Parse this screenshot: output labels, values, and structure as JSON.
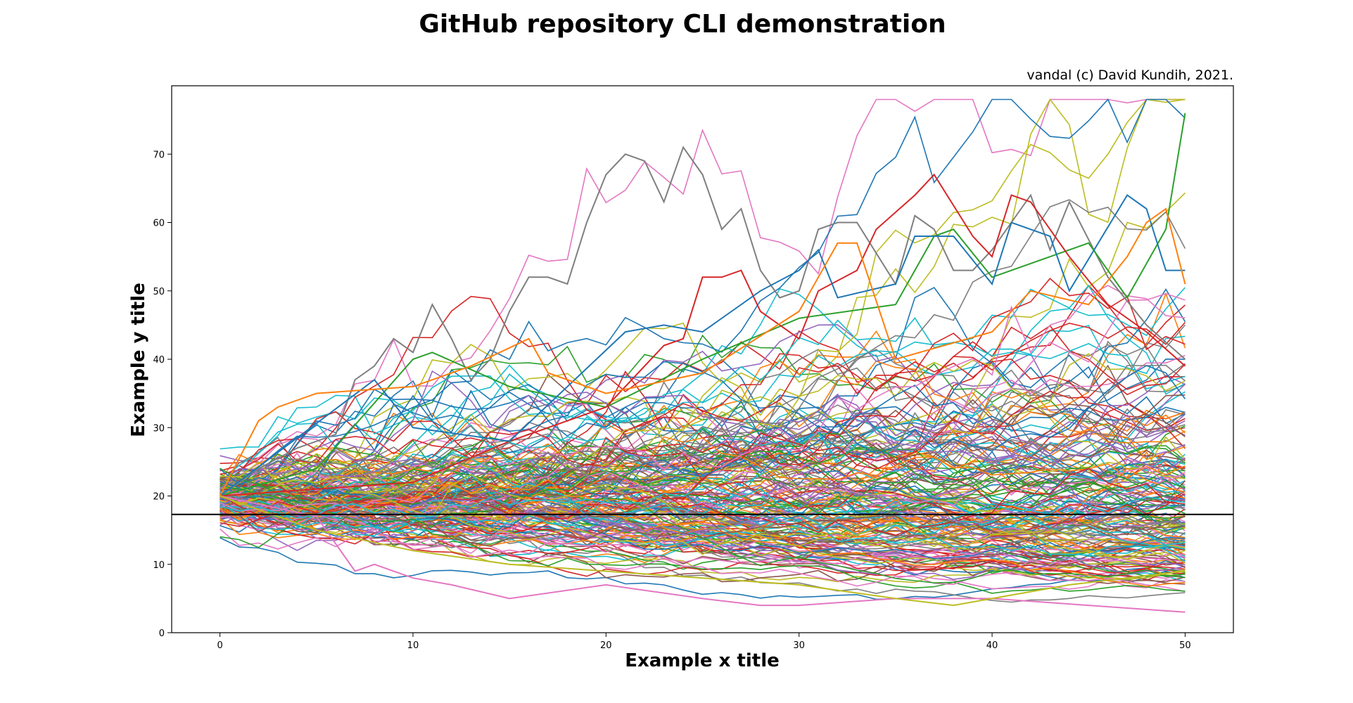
{
  "chart_data": {
    "type": "line",
    "title": "GitHub repository CLI demonstration",
    "subtitle": "vandal (c) David Kundih, 2021.",
    "xlabel": "Example x title",
    "ylabel": "Example y title",
    "xlim": [
      -2.5,
      52.5
    ],
    "ylim": [
      0,
      80
    ],
    "x_ticks": [
      0,
      10,
      20,
      30,
      40,
      50
    ],
    "y_ticks": [
      0,
      10,
      20,
      30,
      40,
      50,
      60,
      70
    ],
    "grid": false,
    "legend": "none",
    "series_count": 200,
    "start_value": 20,
    "points_per_series": 51,
    "reference_line": {
      "y": 17.3,
      "color": "#000000"
    },
    "highlighted_series": [
      {
        "color": "#7f7f7f",
        "values": [
          [
            0,
            20
          ],
          [
            2,
            24
          ],
          [
            4,
            27
          ],
          [
            6,
            29
          ],
          [
            7,
            37
          ],
          [
            8,
            39
          ],
          [
            9,
            43
          ],
          [
            10,
            41
          ],
          [
            11,
            48
          ],
          [
            12,
            43
          ],
          [
            13,
            37
          ],
          [
            14,
            40
          ],
          [
            15,
            47
          ],
          [
            16,
            52
          ],
          [
            17,
            52
          ],
          [
            18,
            51
          ],
          [
            19,
            60
          ],
          [
            20,
            67
          ],
          [
            21,
            70
          ],
          [
            22,
            69
          ],
          [
            23,
            63
          ],
          [
            24,
            71
          ],
          [
            25,
            67
          ],
          [
            26,
            59
          ],
          [
            27,
            62
          ],
          [
            28,
            53
          ],
          [
            29,
            49
          ],
          [
            30,
            50
          ],
          [
            31,
            59
          ],
          [
            32,
            60
          ],
          [
            33,
            60
          ],
          [
            35,
            51
          ],
          [
            36,
            61
          ],
          [
            37,
            59
          ],
          [
            38,
            53
          ],
          [
            39,
            53
          ],
          [
            40,
            56
          ],
          [
            42,
            64
          ],
          [
            43,
            56
          ],
          [
            44,
            63
          ],
          [
            46,
            52
          ],
          [
            48,
            45
          ],
          [
            50,
            40
          ]
        ]
      },
      {
        "color": "#2ca02c",
        "values": [
          [
            0,
            20
          ],
          [
            5,
            24
          ],
          [
            10,
            40
          ],
          [
            11,
            41
          ],
          [
            15,
            36
          ],
          [
            20,
            33
          ],
          [
            25,
            40
          ],
          [
            30,
            46
          ],
          [
            35,
            48
          ],
          [
            37,
            58
          ],
          [
            38,
            59
          ],
          [
            40,
            52
          ],
          [
            45,
            57
          ],
          [
            47,
            49
          ],
          [
            49,
            59
          ],
          [
            50,
            76
          ]
        ]
      },
      {
        "color": "#d62728",
        "values": [
          [
            0,
            20
          ],
          [
            10,
            22
          ],
          [
            15,
            28
          ],
          [
            20,
            33
          ],
          [
            23,
            42
          ],
          [
            24,
            43
          ],
          [
            25,
            52
          ],
          [
            26,
            52
          ],
          [
            27,
            53
          ],
          [
            28,
            47
          ],
          [
            30,
            43
          ],
          [
            31,
            50
          ],
          [
            33,
            53
          ],
          [
            34,
            59
          ],
          [
            36,
            64
          ],
          [
            37,
            67
          ],
          [
            39,
            58
          ],
          [
            40,
            55
          ],
          [
            41,
            64
          ],
          [
            42,
            63
          ],
          [
            44,
            55
          ],
          [
            46,
            48
          ],
          [
            48,
            44
          ],
          [
            50,
            39
          ]
        ]
      },
      {
        "color": "#1f77b4",
        "values": [
          [
            0,
            20
          ],
          [
            8,
            37
          ],
          [
            10,
            30
          ],
          [
            15,
            28
          ],
          [
            21,
            44
          ],
          [
            23,
            45
          ],
          [
            25,
            44
          ],
          [
            28,
            50
          ],
          [
            30,
            53
          ],
          [
            31,
            56
          ],
          [
            32,
            49
          ],
          [
            35,
            51
          ],
          [
            36,
            58
          ],
          [
            38,
            58
          ],
          [
            40,
            51
          ],
          [
            41,
            60
          ],
          [
            43,
            58
          ],
          [
            44,
            50
          ],
          [
            47,
            64
          ],
          [
            48,
            62
          ],
          [
            49,
            53
          ],
          [
            50,
            53
          ]
        ]
      },
      {
        "color": "#ff7f0e",
        "values": [
          [
            0,
            20
          ],
          [
            2,
            31
          ],
          [
            3,
            33
          ],
          [
            5,
            35
          ],
          [
            10,
            36
          ],
          [
            13,
            39
          ],
          [
            16,
            43
          ],
          [
            17,
            38
          ],
          [
            20,
            35
          ],
          [
            25,
            38
          ],
          [
            30,
            47
          ],
          [
            32,
            57
          ],
          [
            33,
            57
          ],
          [
            35,
            40
          ],
          [
            40,
            44
          ],
          [
            42,
            50
          ],
          [
            45,
            48
          ],
          [
            47,
            55
          ],
          [
            48,
            60
          ],
          [
            49,
            62
          ],
          [
            50,
            51
          ]
        ]
      },
      {
        "color": "#e377c2",
        "values": [
          [
            0,
            20
          ],
          [
            5,
            17
          ],
          [
            7,
            9
          ],
          [
            8,
            10
          ],
          [
            10,
            8
          ],
          [
            12,
            7
          ],
          [
            15,
            5
          ],
          [
            20,
            7
          ],
          [
            25,
            5
          ],
          [
            28,
            4
          ],
          [
            30,
            4
          ],
          [
            35,
            5
          ],
          [
            40,
            5
          ],
          [
            45,
            4
          ],
          [
            50,
            3
          ]
        ]
      },
      {
        "color": "#bcbd22",
        "values": [
          [
            0,
            20
          ],
          [
            5,
            15
          ],
          [
            10,
            12
          ],
          [
            15,
            10
          ],
          [
            20,
            9
          ],
          [
            25,
            8
          ],
          [
            30,
            7
          ],
          [
            35,
            5
          ],
          [
            38,
            4
          ],
          [
            40,
            5
          ],
          [
            44,
            7
          ],
          [
            50,
            9
          ]
        ]
      }
    ],
    "palette": [
      "#1f77b4",
      "#ff7f0e",
      "#2ca02c",
      "#d62728",
      "#9467bd",
      "#8c564b",
      "#e377c2",
      "#7f7f7f",
      "#bcbd22",
      "#17becf"
    ]
  }
}
